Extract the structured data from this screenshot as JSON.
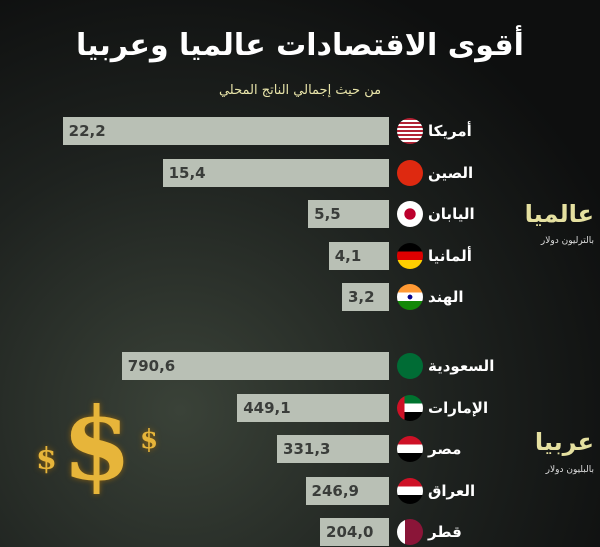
{
  "title": "أقوى الاقتصادات عالميا وعربيا",
  "subtitle": "من حيث إجمالي الناتج المحلي",
  "chart_data": [
    {
      "type": "bar",
      "orientation": "horizontal",
      "section_label": "عالميا",
      "unit_label": "بالترليون دولار",
      "categories": [
        "أمريكا",
        "الصين",
        "اليابان",
        "ألمانيا",
        "الهند"
      ],
      "values": [
        22.2,
        15.4,
        5.5,
        4.1,
        3.2
      ],
      "data_labels": [
        "22,2",
        "15,4",
        "5,5",
        "4,1",
        "3,2"
      ],
      "flags": [
        "us",
        "cn",
        "jp",
        "de",
        "in"
      ]
    },
    {
      "type": "bar",
      "orientation": "horizontal",
      "section_label": "عربيا",
      "unit_label": "بالبليون دولار",
      "categories": [
        "السعودية",
        "الإمارات",
        "مصر",
        "العراق",
        "قطر"
      ],
      "values": [
        790.6,
        449.1,
        331.3,
        246.9,
        204.0
      ],
      "data_labels": [
        "790,6",
        "449,1",
        "331,3",
        "246,9",
        "204,0"
      ],
      "flags": [
        "sa",
        "ae",
        "eg",
        "iq",
        "qa"
      ]
    }
  ],
  "colors": {
    "bar": "#b9c0b5",
    "accent": "#e5e0a0"
  }
}
